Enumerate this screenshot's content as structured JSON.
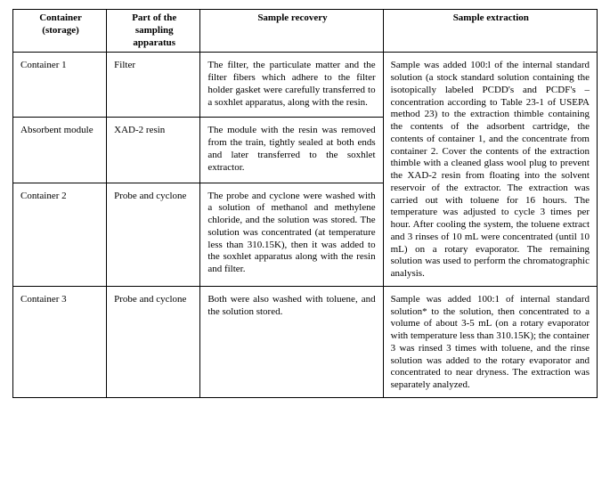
{
  "headers": {
    "h1": "Container (storage)",
    "h2": "Part of the sampling apparatus",
    "h3": "Sample recovery",
    "h4": "Sample extraction"
  },
  "rows": {
    "r1": {
      "container": "Container 1",
      "part": "Filter",
      "recovery": "The filter, the particulate matter and the filter fibers which adhere to the filter holder gasket were carefully transferred to a soxhlet apparatus, along with the resin."
    },
    "r2": {
      "container": "Absorbent module",
      "part": "XAD-2 resin",
      "recovery": "The module with the resin was removed from the train, tightly sealed at both ends and later transferred to the soxhlet extractor."
    },
    "r3": {
      "container": "Container 2",
      "part": "Probe and cyclone",
      "recovery": "The probe and cyclone were washed with a solution of methanol and methylene chloride, and the solution was stored. The solution was concentrated (at temperature less than 310.15K), then it was added to the soxhlet apparatus along with the resin and filter."
    },
    "merged_extraction_1_3": "Sample was added 100:l of the internal standard solution (a stock standard solution containing the isotopically labeled PCDD's and PCDF's – concentration according to Table 23-1 of USEPA method 23) to the extraction thimble containing the contents of the adsorbent cartridge, the contents of container 1, and the concentrate from container 2. Cover the contents of the extraction thimble with a cleaned glass wool plug to prevent the XAD-2 resin from floating into the solvent reservoir of the extractor. The extraction was carried out with toluene for 16 hours. The temperature was adjusted to cycle 3 times per hour. After cooling the system, the toluene extract and 3 rinses of 10 mL were concentrated (until 10 mL) on a rotary evaporator. The remaining solution was used to perform the chromatographic analysis.",
    "r4": {
      "container": "Container 3",
      "part": "Probe and cyclone",
      "recovery": "Both were also washed with toluene, and the solution stored.",
      "extraction": "Sample was added 100:1 of internal standard solution* to the solution, then concentrated to a volume of about 3-5 mL (on a rotary evaporator with temperature less than 310.15K); the container 3 was rinsed 3 times with toluene, and the rinse solution was added to the rotary evaporator and concentrated to near dryness. The extraction was separately analyzed."
    }
  }
}
